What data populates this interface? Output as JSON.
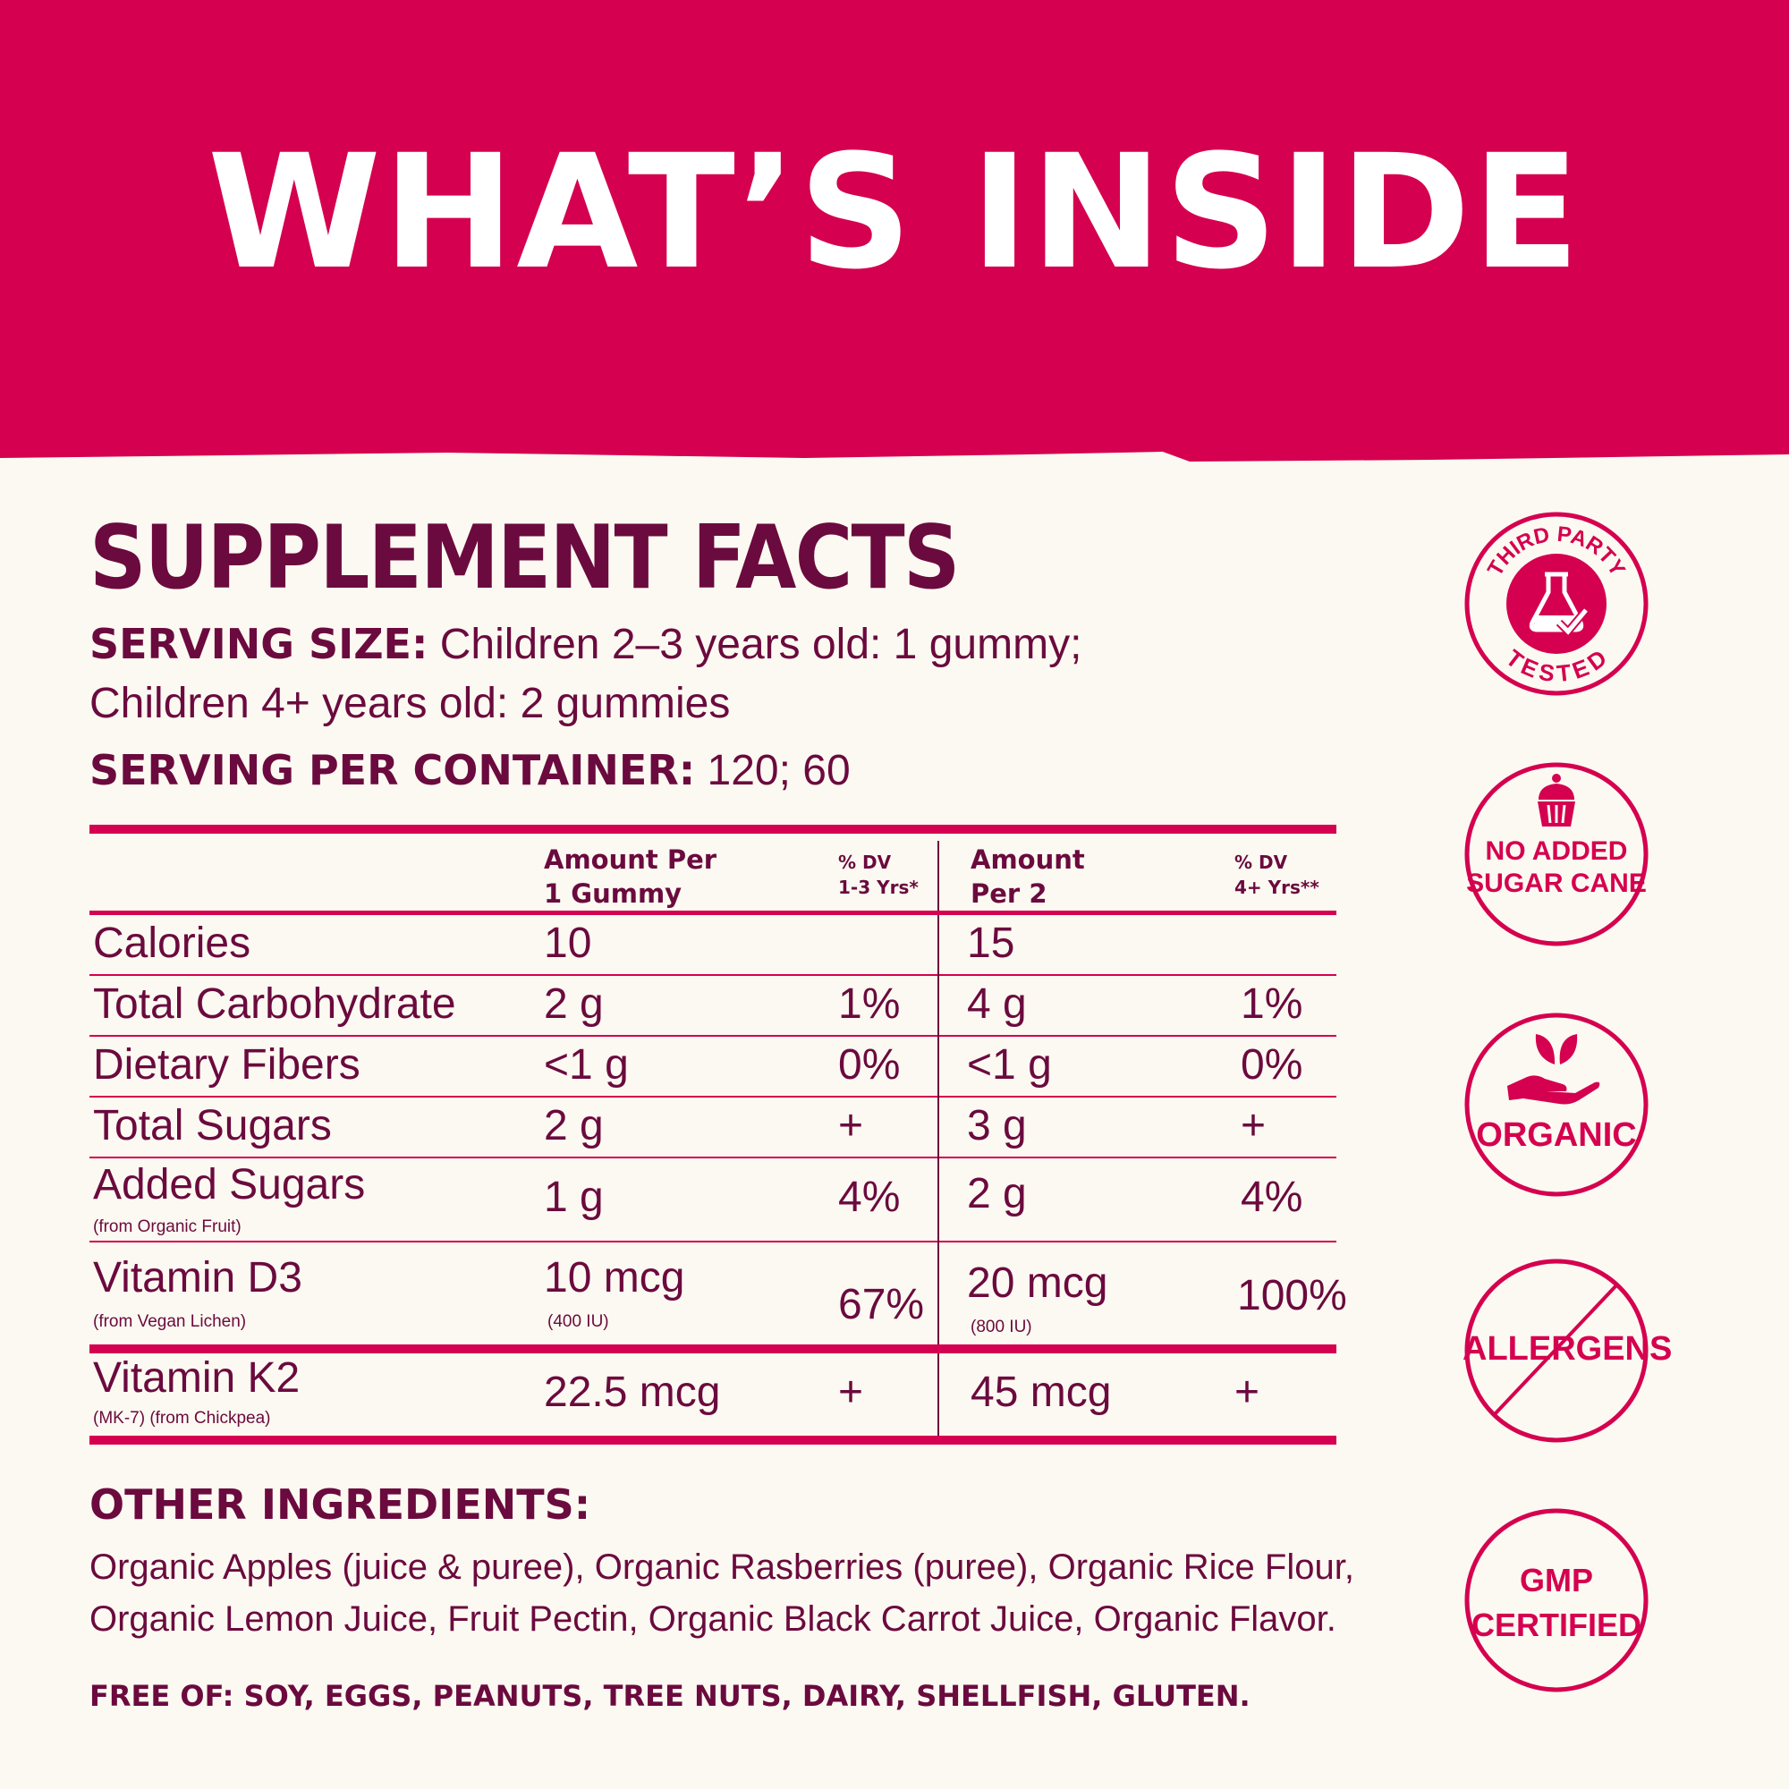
{
  "header": {
    "title": "WHAT’S INSIDE"
  },
  "facts": {
    "title": "SUPPLEMENT FACTS",
    "serving_size_label": "SERVING SIZE:",
    "serving_size_line1": " Children 2–3 years old: 1 gummy;",
    "serving_size_line2": "Children 4+ years old: 2 gummies",
    "servings_label": "SERVING PER CONTAINER:",
    "servings_value": " 120; 60"
  },
  "table": {
    "headers": {
      "amount1_line1": "Amount Per",
      "amount1_line2": "1 Gummy",
      "dv1_line1": "% DV",
      "dv1_line2": "1-3 Yrs*",
      "amount2_line1": "Amount",
      "amount2_line2": "Per 2",
      "dv2_line1": "% DV",
      "dv2_line2": "4+ Yrs**"
    },
    "rows": [
      {
        "name": "Calories",
        "amt1": "10",
        "dv1": "",
        "amt2": "15",
        "dv2": ""
      },
      {
        "name": "Total Carbohydrate",
        "amt1": "2 g",
        "dv1": "1%",
        "amt2": "4 g",
        "dv2": "1%"
      },
      {
        "name": "Dietary Fibers",
        "amt1": "<1 g",
        "dv1": "0%",
        "amt2": "<1 g",
        "dv2": "0%"
      },
      {
        "name": "Total Sugars",
        "amt1": "2 g",
        "dv1": "+",
        "amt2": "3 g",
        "dv2": "+"
      },
      {
        "name": "Added Sugars",
        "sub": "(from Organic Fruit)",
        "amt1": "1 g",
        "dv1": "4%",
        "amt2": "2 g",
        "dv2": "4%"
      },
      {
        "name": "Vitamin D3",
        "sub": "(from Vegan Lichen)",
        "amt1": "10 mcg",
        "amt1_sub": "(400 IU)",
        "dv1": "67%",
        "amt2": "20 mcg",
        "amt2_sub": "(800 IU)",
        "dv2": "100%"
      },
      {
        "name": "Vitamin K2",
        "sub": "(MK-7)  (from Chickpea)",
        "amt1": "22.5 mcg",
        "dv1": "+",
        "amt2": "45 mcg",
        "dv2": "+"
      }
    ]
  },
  "other": {
    "title": "OTHER INGREDIENTS:",
    "text_line1": "Organic Apples (juice & puree), Organic Rasberries (puree), Organic Rice Flour,",
    "text_line2": "Organic Lemon Juice, Fruit Pectin, Organic Black Carrot Juice, Organic Flavor.",
    "free_of": "FREE OF: SOY, EGGS, PEANUTS, TREE NUTS, DAIRY, SHELLFISH, GLUTEN."
  },
  "badges": {
    "third_party_top": "THIRD PARTY",
    "third_party_bottom": "TESTED",
    "no_sugar_line1": "NO ADDED",
    "no_sugar_line2": "SUGAR CANE",
    "organic": "ORGANIC",
    "allergens": "ALLERGENS",
    "gmp_line1": "GMP",
    "gmp_line2": "CERTIFIED"
  },
  "colors": {
    "brand": "#d5004f",
    "text": "#6b0a3e",
    "background": "#fbf9f1"
  }
}
